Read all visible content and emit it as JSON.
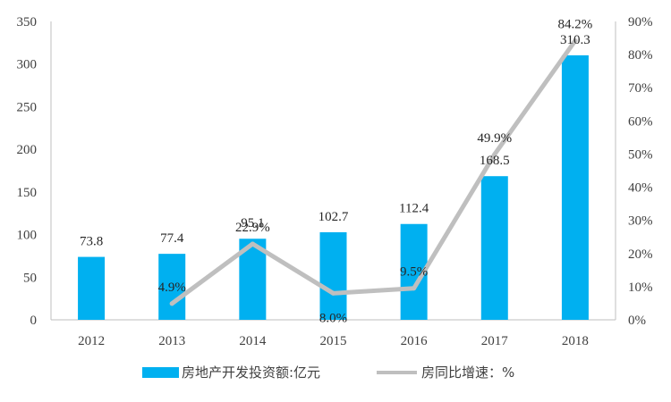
{
  "chart_data": {
    "type": "bar",
    "categories": [
      "2012",
      "2013",
      "2014",
      "2015",
      "2016",
      "2017",
      "2018"
    ],
    "series": [
      {
        "name": "房地产开发投资额:亿元",
        "type": "bar",
        "axis": "left",
        "color": "#00B0F0",
        "values": [
          73.8,
          77.4,
          95.1,
          102.7,
          112.4,
          168.5,
          310.3
        ],
        "labels": [
          "73.8",
          "77.4",
          "95.1",
          "102.7",
          "112.4",
          "168.5",
          "310.3"
        ]
      },
      {
        "name": "房同比增速：%",
        "type": "line",
        "axis": "right",
        "color": "#BFBFBF",
        "values": [
          null,
          4.9,
          22.9,
          8.0,
          9.5,
          49.9,
          84.2
        ],
        "labels": [
          null,
          "4.9%",
          "22.9%",
          "8.0%",
          "9.5%",
          "49.9%",
          "84.2%"
        ]
      }
    ],
    "y_left": {
      "ylim": [
        0,
        350
      ],
      "ticks": [
        "0",
        "50",
        "100",
        "150",
        "200",
        "250",
        "300",
        "350"
      ]
    },
    "y_right": {
      "ylim": [
        0,
        90
      ],
      "ticks": [
        "0%",
        "10%",
        "20%",
        "30%",
        "40%",
        "50%",
        "60%",
        "70%",
        "80%",
        "90%"
      ]
    },
    "grid": false,
    "legend": "bottom"
  }
}
